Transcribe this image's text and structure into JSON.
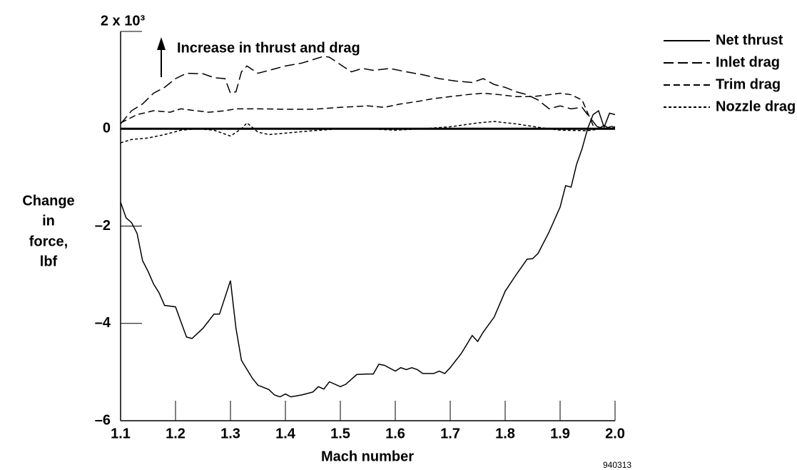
{
  "chart_data": {
    "type": "line",
    "ylabel": [
      "Change",
      "in",
      "force,",
      "lbf"
    ],
    "xlabel": "Mach number",
    "annotations": [
      "Increase in thrust and drag",
      "940313"
    ],
    "xlim": [
      1.1,
      2.0
    ],
    "xticks": [
      1.1,
      1.2,
      1.3,
      1.4,
      1.5,
      1.6,
      1.7,
      1.8,
      1.9,
      {
        "value": 2,
        "label": "2.0"
      }
    ],
    "ylim": [
      -6,
      2
    ],
    "yticks": [
      {
        "value": -6,
        "label": "–6"
      },
      {
        "value": -4,
        "label": "–4"
      },
      {
        "value": -2,
        "label": "–2"
      },
      0,
      {
        "value": 2,
        "label": "2 x 10³"
      }
    ],
    "legend": "top-right",
    "series": [
      {
        "name": "Net thrust",
        "color": "#000000",
        "linestyle": "solid",
        "x": [
          1.1,
          1.11,
          1.12,
          1.13,
          1.14,
          1.15,
          1.16,
          1.17,
          1.18,
          1.2,
          1.22,
          1.23,
          1.25,
          1.27,
          1.28,
          1.3,
          1.31,
          1.32,
          1.34,
          1.35,
          1.37,
          1.38,
          1.39,
          1.4,
          1.41,
          1.43,
          1.45,
          1.46,
          1.47,
          1.48,
          1.5,
          1.51,
          1.53,
          1.55,
          1.56,
          1.57,
          1.58,
          1.6,
          1.61,
          1.62,
          1.63,
          1.64,
          1.65,
          1.67,
          1.68,
          1.69,
          1.7,
          1.72,
          1.74,
          1.75,
          1.76,
          1.78,
          1.8,
          1.82,
          1.84,
          1.85,
          1.86,
          1.88,
          1.9,
          1.91,
          1.92,
          1.93,
          1.94,
          1.95,
          1.96,
          1.97,
          1.98,
          1.99,
          2.0
        ],
        "values": [
          -1.51,
          -1.83,
          -1.93,
          -2.15,
          -2.71,
          -2.93,
          -3.19,
          -3.37,
          -3.63,
          -3.66,
          -4.28,
          -4.31,
          -4.1,
          -3.81,
          -3.81,
          -3.12,
          -4.1,
          -4.76,
          -5.13,
          -5.27,
          -5.36,
          -5.47,
          -5.51,
          -5.45,
          -5.51,
          -5.47,
          -5.41,
          -5.3,
          -5.35,
          -5.2,
          -5.3,
          -5.25,
          -5.05,
          -5.04,
          -5.04,
          -4.84,
          -4.86,
          -4.98,
          -4.91,
          -4.95,
          -4.91,
          -4.95,
          -5.03,
          -5.03,
          -4.98,
          -5.03,
          -4.91,
          -4.62,
          -4.25,
          -4.37,
          -4.18,
          -3.87,
          -3.34,
          -3.0,
          -2.68,
          -2.67,
          -2.56,
          -2.12,
          -1.61,
          -1.17,
          -1.2,
          -0.73,
          -0.41,
          0,
          0.29,
          0.37,
          0.03,
          0.32,
          0.29
        ]
      },
      {
        "name": "Inlet drag",
        "color": "#000000",
        "linestyle": "long-dash",
        "x": [
          1.1,
          1.12,
          1.14,
          1.16,
          1.18,
          1.2,
          1.22,
          1.25,
          1.27,
          1.29,
          1.3,
          1.31,
          1.32,
          1.33,
          1.35,
          1.37,
          1.4,
          1.43,
          1.45,
          1.47,
          1.48,
          1.5,
          1.52,
          1.54,
          1.56,
          1.59,
          1.62,
          1.65,
          1.68,
          1.71,
          1.74,
          1.76,
          1.78,
          1.8,
          1.82,
          1.84,
          1.86,
          1.88,
          1.9,
          1.92,
          1.94,
          1.95,
          1.96,
          1.97,
          1.98,
          1.99,
          2.0
        ],
        "values": [
          0.1,
          0.37,
          0.51,
          0.73,
          0.85,
          1.03,
          1.14,
          1.13,
          1.05,
          1.03,
          0.73,
          0.76,
          1.17,
          1.29,
          1.14,
          1.2,
          1.29,
          1.35,
          1.42,
          1.49,
          1.47,
          1.32,
          1.17,
          1.24,
          1.2,
          1.24,
          1.17,
          1.11,
          1.03,
          0.98,
          0.95,
          1.03,
          0.91,
          0.85,
          0.76,
          0.7,
          0.59,
          0.41,
          0.47,
          0.41,
          0.44,
          0.29,
          0.15,
          0,
          0.07,
          0,
          0.03
        ]
      },
      {
        "name": "Trim drag",
        "color": "#000000",
        "linestyle": "dash",
        "x": [
          1.1,
          1.13,
          1.16,
          1.19,
          1.21,
          1.23,
          1.26,
          1.29,
          1.31,
          1.35,
          1.4,
          1.45,
          1.5,
          1.55,
          1.58,
          1.61,
          1.64,
          1.67,
          1.7,
          1.73,
          1.76,
          1.79,
          1.82,
          1.85,
          1.88,
          1.9,
          1.92,
          1.94,
          1.96,
          1.98,
          2.0
        ],
        "values": [
          0.12,
          0.29,
          0.37,
          0.34,
          0.41,
          0.38,
          0.34,
          0.37,
          0.41,
          0.41,
          0.4,
          0.4,
          0.44,
          0.47,
          0.44,
          0.51,
          0.56,
          0.62,
          0.66,
          0.7,
          0.73,
          0.7,
          0.66,
          0.66,
          0.7,
          0.73,
          0.7,
          0.59,
          0.07,
          0,
          0.07
        ]
      },
      {
        "name": "Nozzle drag",
        "color": "#000000",
        "linestyle": "short-dash",
        "x": [
          1.1,
          1.12,
          1.15,
          1.18,
          1.21,
          1.24,
          1.27,
          1.3,
          1.32,
          1.33,
          1.35,
          1.37,
          1.4,
          1.45,
          1.5,
          1.55,
          1.6,
          1.65,
          1.7,
          1.75,
          1.78,
          1.82,
          1.86,
          1.9,
          1.95,
          2.0
        ],
        "values": [
          -0.29,
          -0.22,
          -0.19,
          -0.12,
          -0.03,
          0,
          -0.03,
          -0.15,
          0,
          0.12,
          -0.07,
          -0.12,
          -0.09,
          -0.04,
          0,
          0,
          -0.03,
          0,
          0.04,
          0.12,
          0.15,
          0.1,
          0.03,
          -0.03,
          -0.04,
          0.04
        ]
      }
    ]
  }
}
